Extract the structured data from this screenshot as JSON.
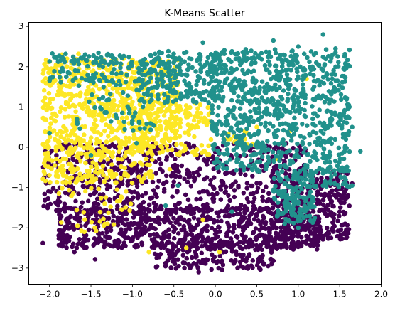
{
  "chart_data": {
    "type": "scatter",
    "title": "K-Means Scatter",
    "xlabel": "",
    "ylabel": "",
    "xlim": [
      -2.25,
      2.0
    ],
    "ylim": [
      -3.4,
      3.1
    ],
    "x_ticks": [
      -2.0,
      -1.5,
      -1.0,
      -0.5,
      0.0,
      0.5,
      1.0,
      1.5,
      2.0
    ],
    "x_tick_labels": [
      "−2.0",
      "−1.5",
      "−1.0",
      "−0.5",
      "0.0",
      "0.5",
      "1.0",
      "1.5",
      "2.0"
    ],
    "y_ticks": [
      -3,
      -2,
      -1,
      0,
      1,
      2,
      3
    ],
    "y_tick_labels": [
      "−3",
      "−2",
      "−1",
      "0",
      "1",
      "2",
      "3"
    ],
    "grid": false,
    "legend": "none",
    "marker_radius_data": 0.028,
    "series": [
      {
        "color": "#440154",
        "regions": [
          {
            "x": [
              -2.08,
              1.1
            ],
            "y": [
              -1.6,
              0.1
            ],
            "count": 650
          },
          {
            "x": [
              -1.9,
              1.05
            ],
            "y": [
              -2.5,
              -1.5
            ],
            "count": 700
          },
          {
            "x": [
              -0.75,
              0.7
            ],
            "y": [
              -3.05,
              -2.35
            ],
            "count": 160
          },
          {
            "x": [
              0.95,
              1.62
            ],
            "y": [
              -2.3,
              -0.6
            ],
            "count": 260
          },
          {
            "x": [
              0.55,
              1.25
            ],
            "y": [
              -2.55,
              -2.0
            ],
            "count": 70
          }
        ],
        "points": [
          {
            "x": -2.08,
            "y": -2.38
          },
          {
            "x": -1.45,
            "y": -2.78
          },
          {
            "x": -1.7,
            "y": -2.6
          },
          {
            "x": -1.2,
            "y": -2.45
          },
          {
            "x": -0.2,
            "y": -3.1
          },
          {
            "x": -0.6,
            "y": -2.95
          },
          {
            "x": -0.15,
            "y": -2.8
          },
          {
            "x": 0.3,
            "y": -2.85
          },
          {
            "x": 0.7,
            "y": -2.82
          },
          {
            "x": 0.85,
            "y": -2.4
          },
          {
            "x": 1.2,
            "y": -2.1
          },
          {
            "x": 1.5,
            "y": -1.6
          },
          {
            "x": 1.6,
            "y": -1.2
          },
          {
            "x": 1.65,
            "y": -0.9
          },
          {
            "x": -0.3,
            "y": -2.0
          },
          {
            "x": 0.4,
            "y": -1.8
          },
          {
            "x": 0.6,
            "y": -2.2
          },
          {
            "x": -2.05,
            "y": -0.1
          }
        ]
      },
      {
        "color": "#fde725",
        "regions": [
          {
            "x": [
              -2.08,
              -0.45
            ],
            "y": [
              0.1,
              2.2
            ],
            "count": 620
          },
          {
            "x": [
              -2.08,
              -0.75
            ],
            "y": [
              -0.9,
              0.1
            ],
            "count": 220
          },
          {
            "x": [
              -1.0,
              -0.05
            ],
            "y": [
              -0.2,
              1.1
            ],
            "count": 170
          },
          {
            "x": [
              -1.9,
              -1.0
            ],
            "y": [
              -2.1,
              -1.0
            ],
            "count": 40
          },
          {
            "x": [
              0.1,
              0.5
            ],
            "y": [
              0.0,
              0.4
            ],
            "count": 20
          }
        ],
        "points": [
          {
            "x": -0.8,
            "y": -2.6
          },
          {
            "x": -0.15,
            "y": -1.8
          },
          {
            "x": -2.05,
            "y": 0.0
          },
          {
            "x": 0.5,
            "y": 0.5
          },
          {
            "x": 0.9,
            "y": 0.4
          },
          {
            "x": 1.1,
            "y": 1.7
          },
          {
            "x": 0.75,
            "y": -0.3
          },
          {
            "x": -0.35,
            "y": 0.75
          },
          {
            "x": -0.55,
            "y": -0.55
          },
          {
            "x": -1.85,
            "y": 2.3
          },
          {
            "x": -1.65,
            "y": 2.32
          },
          {
            "x": -0.45,
            "y": 2.2
          },
          {
            "x": -0.35,
            "y": -2.5
          },
          {
            "x": 0.05,
            "y": -2.6
          },
          {
            "x": -1.3,
            "y": -1.9
          }
        ]
      },
      {
        "color": "#21918c",
        "regions": [
          {
            "x": [
              -0.05,
              1.62
            ],
            "y": [
              -0.6,
              2.45
            ],
            "count": 820
          },
          {
            "x": [
              -0.9,
              0.1
            ],
            "y": [
              1.1,
              2.4
            ],
            "count": 230
          },
          {
            "x": [
              -2.0,
              -0.9
            ],
            "y": [
              1.6,
              2.35
            ],
            "count": 110
          },
          {
            "x": [
              -1.7,
              -0.6
            ],
            "y": [
              0.4,
              1.6
            ],
            "count": 50
          },
          {
            "x": [
              0.7,
              1.2
            ],
            "y": [
              -1.9,
              -0.6
            ],
            "count": 150
          },
          {
            "x": [
              1.1,
              1.62
            ],
            "y": [
              -1.0,
              -0.5
            ],
            "count": 40
          }
        ],
        "points": [
          {
            "x": 1.3,
            "y": 2.8
          },
          {
            "x": 0.7,
            "y": 2.65
          },
          {
            "x": -0.15,
            "y": 2.6
          },
          {
            "x": 1.0,
            "y": 2.5
          },
          {
            "x": 1.45,
            "y": 2.45
          },
          {
            "x": 1.75,
            "y": -0.1
          },
          {
            "x": 1.6,
            "y": 1.0
          },
          {
            "x": 1.65,
            "y": 0.5
          },
          {
            "x": 1.58,
            "y": -0.55
          },
          {
            "x": 1.55,
            "y": -0.9
          },
          {
            "x": 1.65,
            "y": -0.95
          },
          {
            "x": 0.2,
            "y": -1.6
          },
          {
            "x": -0.45,
            "y": -0.95
          },
          {
            "x": -0.95,
            "y": 0.1
          },
          {
            "x": -1.5,
            "y": -0.2
          },
          {
            "x": -2.0,
            "y": 0.35
          },
          {
            "x": -1.4,
            "y": 1.2
          },
          {
            "x": 1.0,
            "y": -2.0
          },
          {
            "x": 1.15,
            "y": -1.4
          },
          {
            "x": -0.6,
            "y": -1.45
          },
          {
            "x": -1.2,
            "y": 0.8
          }
        ]
      }
    ]
  }
}
